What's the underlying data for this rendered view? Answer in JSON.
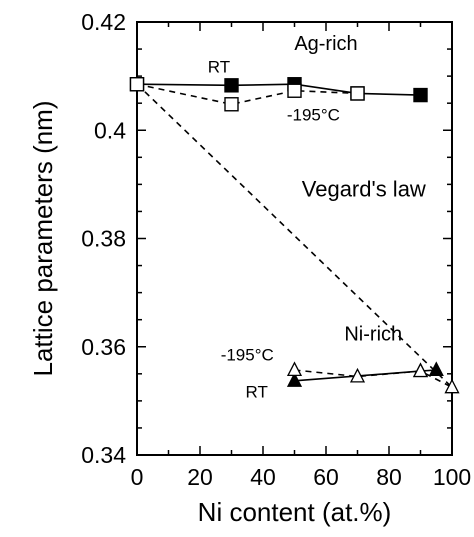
{
  "chart_data": {
    "type": "line",
    "title": "",
    "xlabel": "Ni content (at.%)",
    "ylabel": "Lattice parameters  (nm)",
    "xlim": [
      0,
      100
    ],
    "ylim": [
      0.34,
      0.42
    ],
    "x_ticks": [
      0,
      20,
      40,
      60,
      80,
      100
    ],
    "y_ticks": [
      0.34,
      0.36,
      0.38,
      0.4,
      0.42
    ],
    "x_tick_labels": [
      "0",
      "20",
      "40",
      "60",
      "80",
      "100"
    ],
    "y_tick_labels": [
      "0.34",
      "0.36",
      "0.38",
      "0.4",
      "0.42"
    ],
    "grid": false,
    "series": [
      {
        "name": "RT",
        "marker": "filled-square",
        "line": "solid",
        "x": [
          0,
          30,
          50,
          70,
          90
        ],
        "y": [
          0.4085,
          0.4083,
          0.4085,
          0.4068,
          0.4065
        ]
      },
      {
        "name": "-195°C",
        "marker": "open-square",
        "line": "dashed",
        "x": [
          0,
          30,
          50,
          70
        ],
        "y": [
          0.4085,
          0.4048,
          0.4073,
          0.4068
        ]
      },
      {
        "name": "RT",
        "marker": "filled-triangle",
        "line": "solid",
        "x": [
          50,
          90,
          95
        ],
        "y": [
          0.3537,
          0.3555,
          0.3557
        ]
      },
      {
        "name": "-195°C",
        "marker": "open-triangle",
        "line": "dashed",
        "x": [
          50,
          70,
          90,
          100
        ],
        "y": [
          0.3557,
          0.3545,
          0.3555,
          0.3525
        ]
      },
      {
        "name": "Vegard's law",
        "marker": "none",
        "line": "dashed",
        "x": [
          0,
          100
        ],
        "y": [
          0.4085,
          0.3525
        ]
      }
    ],
    "annotations": [
      {
        "text": "Ag-rich",
        "x": 60,
        "y": 0.4148
      },
      {
        "text": "RT",
        "x": 26,
        "y": 0.4107
      },
      {
        "text": "-195°C",
        "x": 56,
        "y": 0.4018
      },
      {
        "text": "Vegard's law",
        "x": 72,
        "y": 0.3878
      },
      {
        "text": "Ni-rich",
        "x": 75,
        "y": 0.3612
      },
      {
        "text": "-195°C",
        "x": 35,
        "y": 0.3575
      },
      {
        "text": "RT",
        "x": 38,
        "y": 0.3506
      }
    ]
  }
}
